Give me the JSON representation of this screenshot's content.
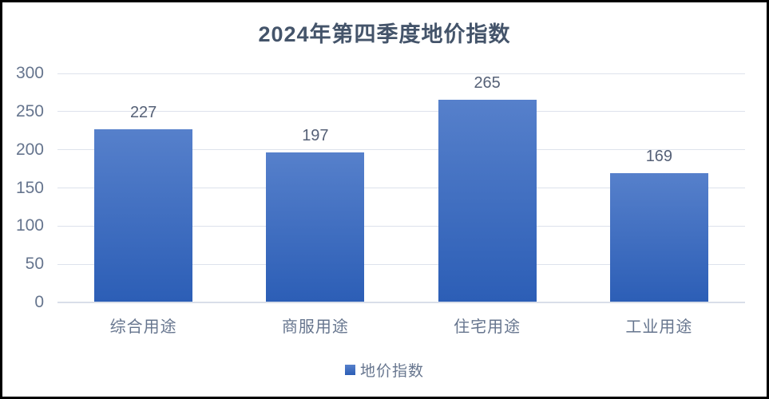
{
  "chart_data": {
    "type": "bar",
    "title": "2024年第四季度地价指数",
    "categories": [
      "综合用途",
      "商服用途",
      "住宅用途",
      "工业用途"
    ],
    "values": [
      227,
      197,
      265,
      169
    ],
    "series_name": "地价指数",
    "xlabel": "",
    "ylabel": "",
    "ylim": [
      0,
      300
    ],
    "yticks": [
      0,
      50,
      100,
      150,
      200,
      250,
      300
    ],
    "grid": true,
    "data_labels": true,
    "legend_position": "bottom"
  },
  "legend": {
    "marker": "square-icon",
    "label": "地价指数"
  },
  "colors": {
    "background": "#FFFFFF",
    "frame_border": "#000000",
    "title": "#44546A",
    "axis_label": "#66758E",
    "data_label": "#566177",
    "gridline": "#DDE2EC",
    "axis_line": "#D9DEE9",
    "bar_gradient_top": "#5680CB",
    "bar_gradient_bottom": "#2C5EB6"
  }
}
